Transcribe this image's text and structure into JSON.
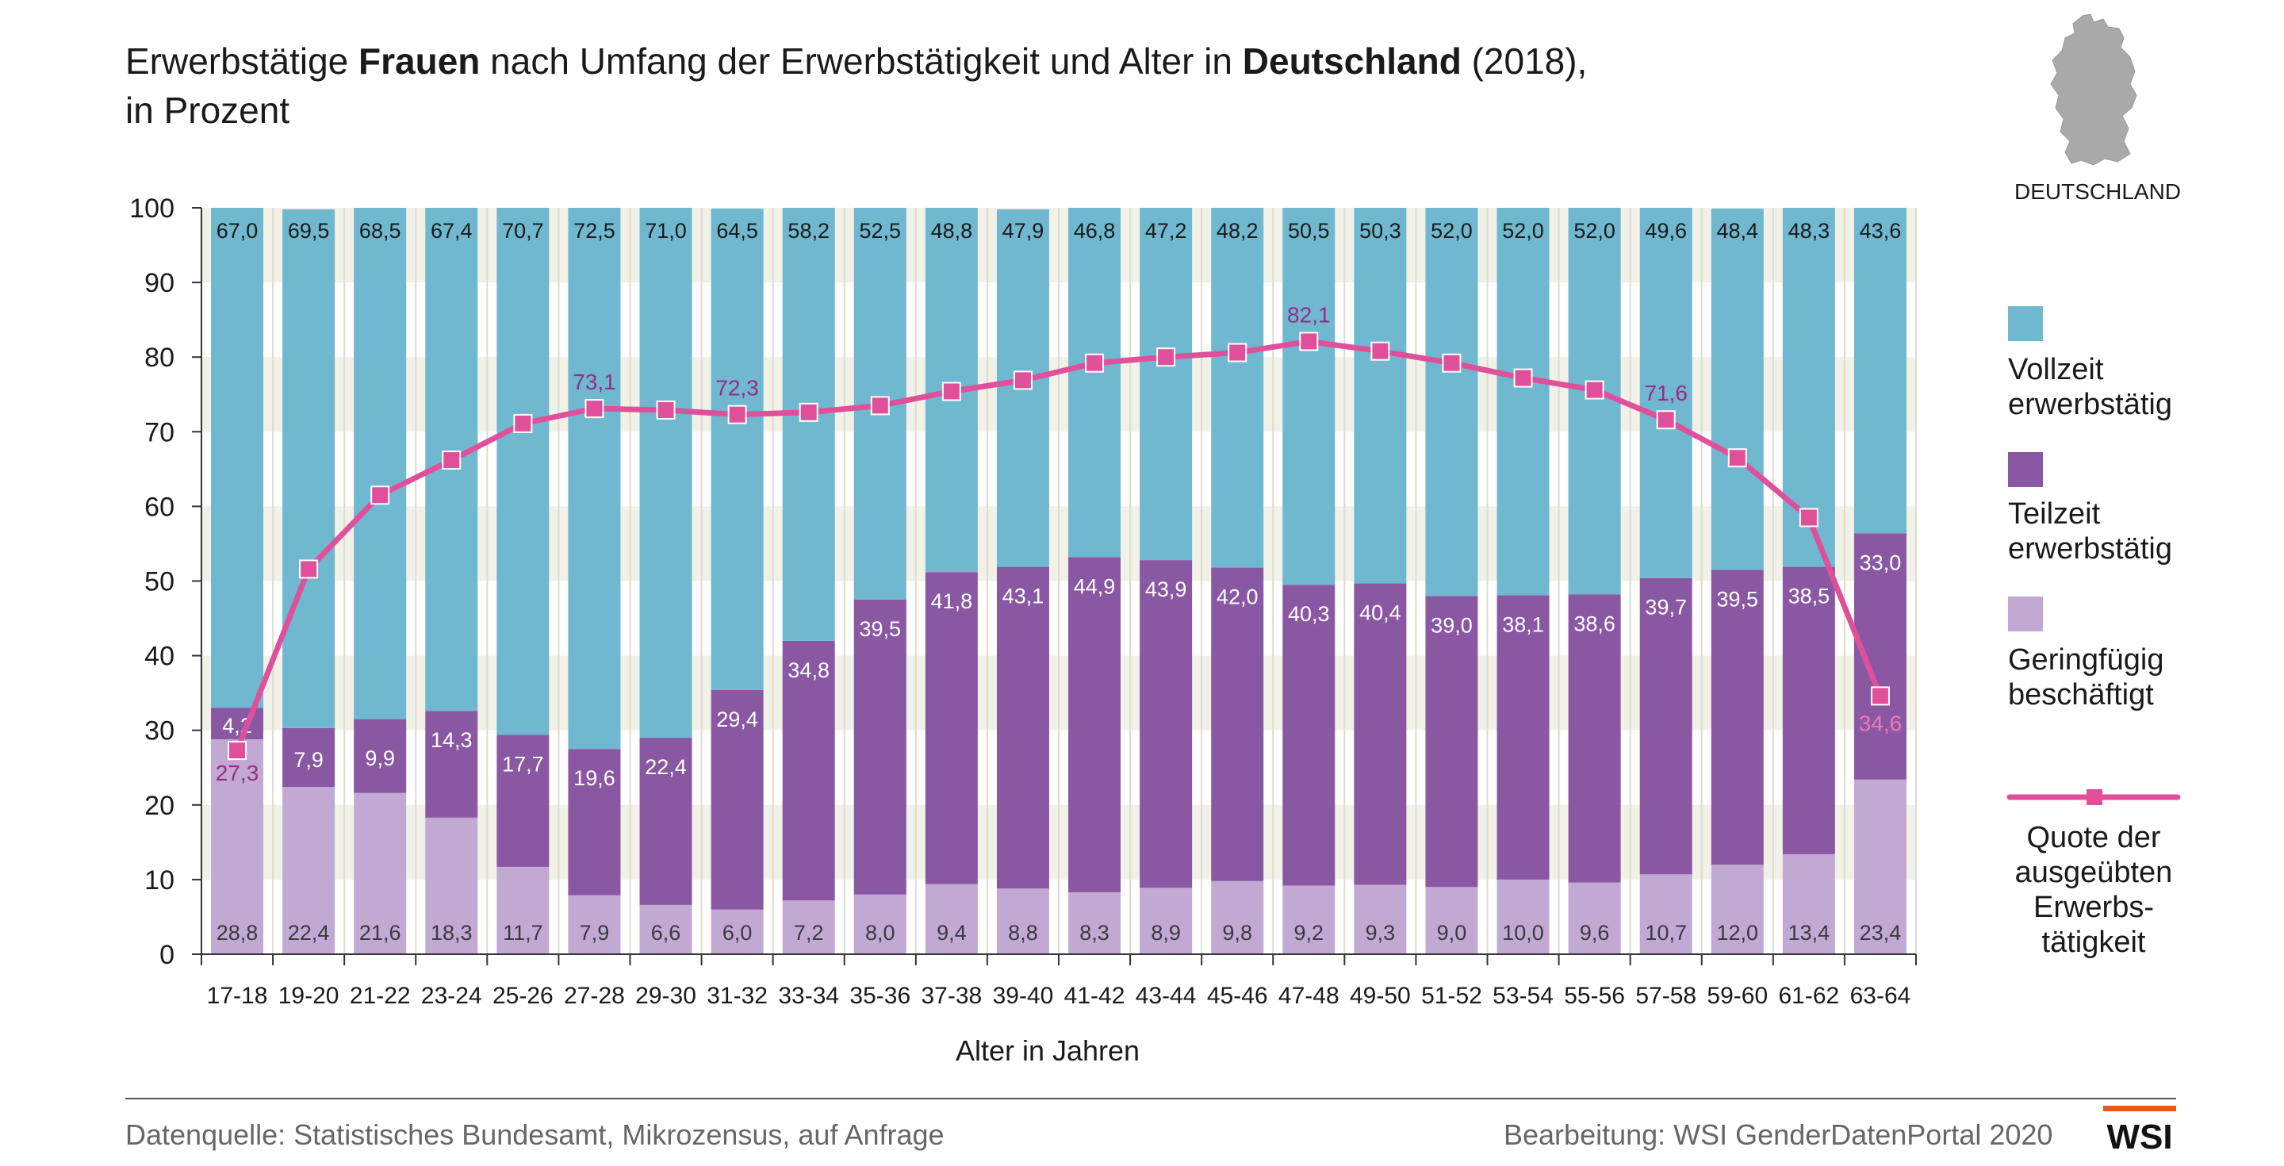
{
  "title": {
    "p1": "Erwerbstätige ",
    "b1": "Frauen",
    "p2": " nach Umfang der Erwerbstätigkeit und Alter in ",
    "b2": "Deutschland",
    "p3": " (2018),",
    "line2": "in Prozent"
  },
  "map": {
    "label": "DEUTSCHLAND",
    "icon": "germany-map-icon"
  },
  "legend": {
    "vollzeit": "Vollzeit erwerbstätig",
    "teilzeit": "Teilzeit erwerbstätig",
    "gering": "Geringfügig beschäftigt",
    "quote": "Quote der ausgeübten Erwerbs-tätigkeit",
    "vollzeit_lines": [
      "Vollzeit",
      "erwerbstätig"
    ],
    "teilzeit_lines": [
      "Teilzeit",
      "erwerbstätig"
    ],
    "gering_lines": [
      "Geringfügig",
      "beschäftigt"
    ],
    "quote_lines": [
      "Quote der",
      "ausgeübten",
      "Erwerbs-",
      "tätigkeit"
    ]
  },
  "footer": {
    "source": "Datenquelle: Statistisches Bundesamt, Mikrozensus, auf Anfrage",
    "credit": "Bearbeitung: WSI GenderDatenPortal 2020",
    "logo": "WSI"
  },
  "colors": {
    "vollzeit": "#6fb8d0",
    "teilzeit": "#8a57a3",
    "gering": "#c1a9d4",
    "quote": "#e0509a",
    "quote_label": "#9b2a86",
    "band": "#f1f1e8"
  },
  "chart_data": {
    "type": "bar",
    "stacked": true,
    "xlabel": "Alter in Jahren",
    "ylabel": "",
    "ylim": [
      0,
      100
    ],
    "yticks": [
      0,
      10,
      20,
      30,
      40,
      50,
      60,
      70,
      80,
      90,
      100
    ],
    "categories": [
      "17-18",
      "19-20",
      "21-22",
      "23-24",
      "25-26",
      "27-28",
      "29-30",
      "31-32",
      "33-34",
      "35-36",
      "37-38",
      "39-40",
      "41-42",
      "43-44",
      "45-46",
      "47-48",
      "49-50",
      "51-52",
      "53-54",
      "55-56",
      "57-58",
      "59-60",
      "61-62",
      "63-64"
    ],
    "series": [
      {
        "name": "Geringfügig beschäftigt",
        "values": [
          28.8,
          22.4,
          21.6,
          18.3,
          11.7,
          7.9,
          6.6,
          6.0,
          7.2,
          8.0,
          9.4,
          8.8,
          8.3,
          8.9,
          9.8,
          9.2,
          9.3,
          9.0,
          10.0,
          9.6,
          10.7,
          12.0,
          13.4,
          23.4
        ]
      },
      {
        "name": "Teilzeit erwerbstätig",
        "values": [
          4.2,
          7.9,
          9.9,
          14.3,
          17.7,
          19.6,
          22.4,
          29.4,
          34.8,
          39.5,
          41.8,
          43.1,
          44.9,
          43.9,
          42.0,
          40.3,
          40.4,
          39.0,
          38.1,
          38.6,
          39.7,
          39.5,
          38.5,
          33.0
        ]
      },
      {
        "name": "Vollzeit erwerbstätig",
        "values": [
          67.0,
          69.5,
          68.5,
          67.4,
          70.7,
          72.5,
          71.0,
          64.5,
          58.2,
          52.5,
          48.8,
          47.9,
          46.8,
          47.2,
          48.2,
          50.5,
          50.3,
          52.0,
          52.0,
          52.0,
          49.6,
          48.4,
          48.3,
          43.6
        ]
      }
    ],
    "labels": {
      "gering": [
        "28,8",
        "22,4",
        "21,6",
        "18,3",
        "11,7",
        "7,9",
        "6,6",
        "6,0",
        "7,2",
        "8,0",
        "9,4",
        "8,8",
        "8,3",
        "8,9",
        "9,8",
        "9,2",
        "9,3",
        "9,0",
        "10,0",
        "9,6",
        "10,7",
        "12,0",
        "13,4",
        "23,4"
      ],
      "teilzeit": [
        "4,2",
        "7,9",
        "9,9",
        "14,3",
        "17,7",
        "19,6",
        "22,4",
        "29,4",
        "34,8",
        "39,5",
        "41,8",
        "43,1",
        "44,9",
        "43,9",
        "42,0",
        "40,3",
        "40,4",
        "39,0",
        "38,1",
        "38,6",
        "39,7",
        "39,5",
        "38,5",
        "33,0"
      ],
      "vollzeit": [
        "67,0",
        "69,5",
        "68,5",
        "67,4",
        "70,7",
        "72,5",
        "71,0",
        "64,5",
        "58,2",
        "52,5",
        "48,8",
        "47,9",
        "46,8",
        "47,2",
        "48,2",
        "50,5",
        "50,3",
        "52,0",
        "52,0",
        "52,0",
        "49,6",
        "48,4",
        "48,3",
        "43,6"
      ]
    },
    "line": {
      "name": "Quote der ausgeübten Erwerbstätigkeit",
      "values": [
        27.3,
        51.6,
        61.5,
        66.2,
        71.1,
        73.1,
        72.9,
        72.3,
        72.6,
        73.5,
        75.4,
        76.9,
        79.2,
        80.0,
        80.6,
        82.1,
        80.8,
        79.2,
        77.2,
        75.6,
        71.6,
        66.5,
        58.5,
        34.6
      ],
      "labels": {
        "0": "27,3",
        "5": "73,1",
        "7": "72,3",
        "15": "82,1",
        "20": "71,6",
        "23": "34,6"
      }
    }
  }
}
